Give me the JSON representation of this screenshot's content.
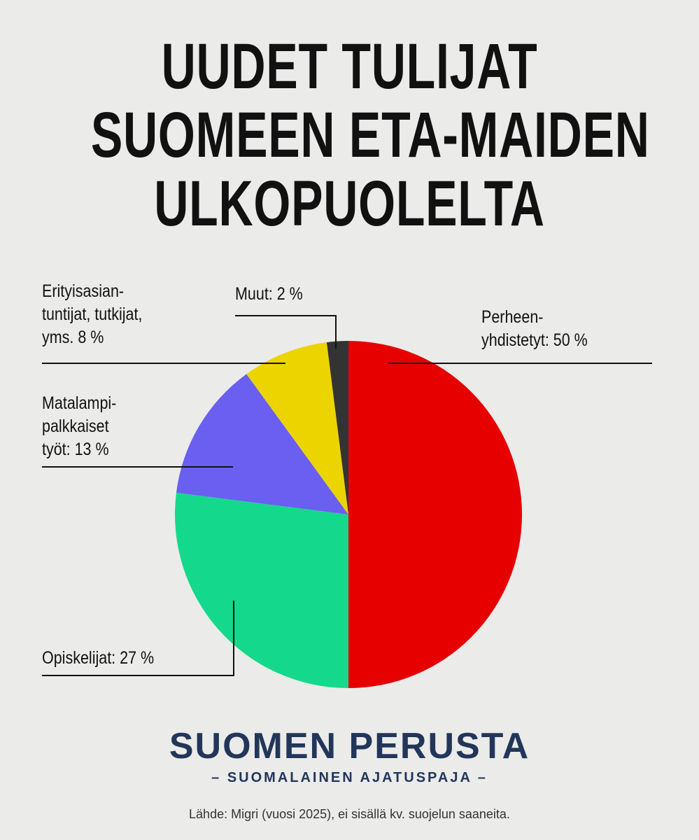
{
  "chart_data": {
    "type": "pie",
    "title_lines": [
      "UUDET TULIJAT",
      "SUOMEEN ETA-MAIDEN",
      "ULKOPUOLELTA"
    ],
    "slices": [
      {
        "label_lines": [
          "Perheen-",
          "yhdistetyt: 50 %"
        ],
        "value": 50,
        "color": "#e60000"
      },
      {
        "label_lines": [
          "Opiskelijat: 27 %"
        ],
        "value": 27,
        "color": "#14d98c"
      },
      {
        "label_lines": [
          "Matalampi-",
          "palkkaiset",
          "työt: 13 %"
        ],
        "value": 13,
        "color": "#6a5ff0"
      },
      {
        "label_lines": [
          "Erityisasian-",
          "tuntijat, tutkijat,",
          "yms. 8 %"
        ],
        "value": 8,
        "color": "#ecd400"
      },
      {
        "label_lines": [
          "Muut: 2 %"
        ],
        "value": 2,
        "color": "#333333"
      }
    ],
    "start": "12 o'clock",
    "direction": "clockwise"
  },
  "brand": {
    "name": "SUOMEN PERUSTA",
    "tagline": "– SUOMALAINEN AJATUSPAJA –"
  },
  "source": "Lähde: Migri (vuosi 2025), ei sisällä kv. suojelun saaneita."
}
